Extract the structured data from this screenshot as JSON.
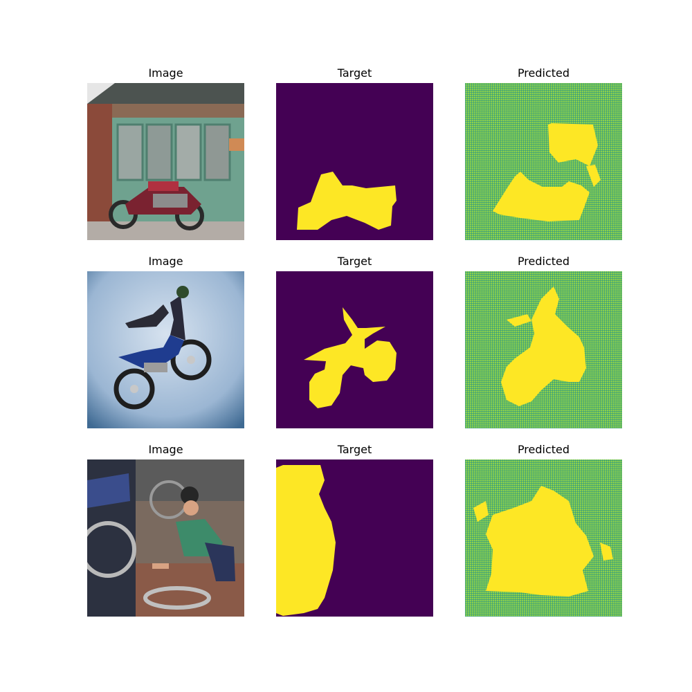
{
  "rows": [
    {
      "image_title": "Image",
      "target_title": "Target",
      "predicted_title": "Predicted",
      "scene": "red motorcycle parked in front of green wooden doors"
    },
    {
      "image_title": "Image",
      "target_title": "Target",
      "predicted_title": "Predicted",
      "scene": "motocross rider jumping against blue sky"
    },
    {
      "image_title": "Image",
      "target_title": "Target",
      "predicted_title": "Predicted",
      "scene": "man repairing motorcycle wheel on street"
    }
  ],
  "colors": {
    "background": "#440154",
    "foreground": "#fde725",
    "pred_base": "#8fd14a",
    "pred_grid": "#21918c"
  }
}
